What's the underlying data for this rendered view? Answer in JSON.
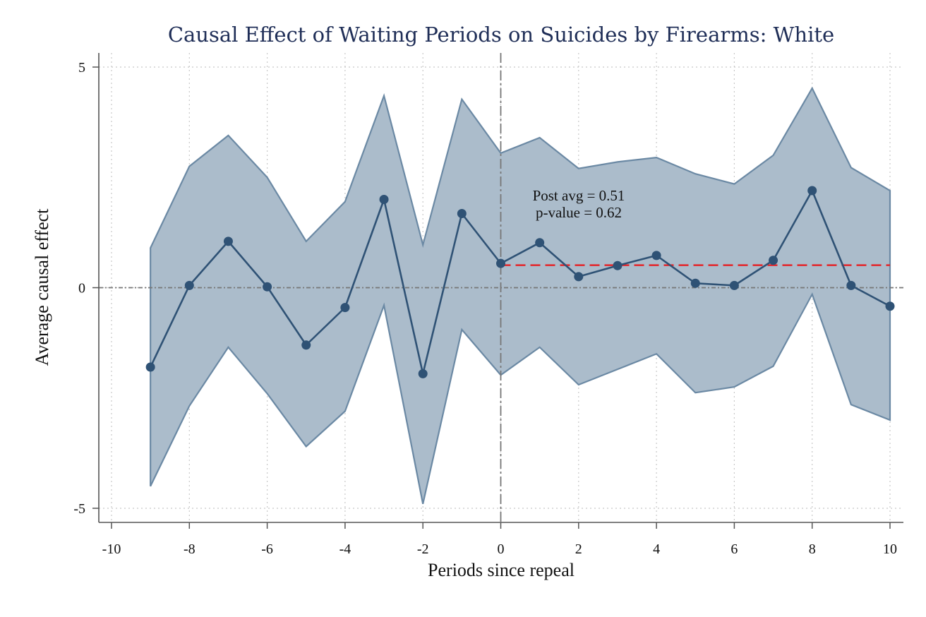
{
  "chart_data": {
    "type": "line",
    "title": "Causal Effect of Waiting Periods on Suicides by Firearms: White",
    "xlabel": "Periods since repeal",
    "ylabel": "Average causal effect",
    "xlim": [
      -10,
      10
    ],
    "ylim": [
      -5,
      5
    ],
    "x_ticks": [
      -10,
      -8,
      -6,
      -4,
      -2,
      0,
      2,
      4,
      6,
      8,
      10
    ],
    "x_tick_labels": [
      "-10",
      "-8",
      "-6",
      "-4",
      "-2",
      "0",
      "2",
      "4",
      "6",
      "8",
      "10"
    ],
    "y_ticks": [
      5,
      0,
      -5
    ],
    "y_tick_labels": [
      "5",
      "0",
      "-5"
    ],
    "grid": true,
    "reference_lines": {
      "vertical_x": 0,
      "horizontal_y": 0
    },
    "x": [
      -9,
      -8,
      -7,
      -6,
      -5,
      -4,
      -3,
      -2,
      -1,
      0,
      1,
      2,
      3,
      4,
      5,
      6,
      7,
      8,
      9,
      10
    ],
    "series": [
      {
        "values": [
          -1.8,
          0.05,
          1.05,
          0.02,
          -1.3,
          -0.45,
          2.0,
          -1.95,
          1.68,
          0.55,
          1.02,
          0.25,
          0.5,
          0.73,
          0.1,
          0.05,
          0.62,
          2.2,
          0.05,
          -0.42
        ]
      }
    ],
    "confidence_band": {
      "lower": [
        -4.5,
        -2.68,
        -1.35,
        -2.4,
        -3.6,
        -2.8,
        -0.4,
        -4.9,
        -0.95,
        -1.98,
        -1.35,
        -2.2,
        -1.85,
        -1.5,
        -2.38,
        -2.25,
        -1.78,
        -0.15,
        -2.65,
        -3.0
      ],
      "upper": [
        0.9,
        2.75,
        3.45,
        2.5,
        1.05,
        1.95,
        4.35,
        0.97,
        4.27,
        3.05,
        3.4,
        2.7,
        2.85,
        2.95,
        2.58,
        2.35,
        3.0,
        4.52,
        2.72,
        2.2
      ]
    },
    "post_average": {
      "value": 0.51,
      "x_start": 0,
      "x_end": 10
    },
    "annotations": [
      "Post avg = 0.51",
      "p-value = 0.62"
    ],
    "colors": {
      "line": "#2f5275",
      "band_fill": "#abbccb",
      "band_edge": "#6b89a4",
      "post_avg_line": "#e3262b",
      "title": "#1f2e57",
      "grid": "#c8c8c8",
      "reference": "#777777"
    }
  }
}
